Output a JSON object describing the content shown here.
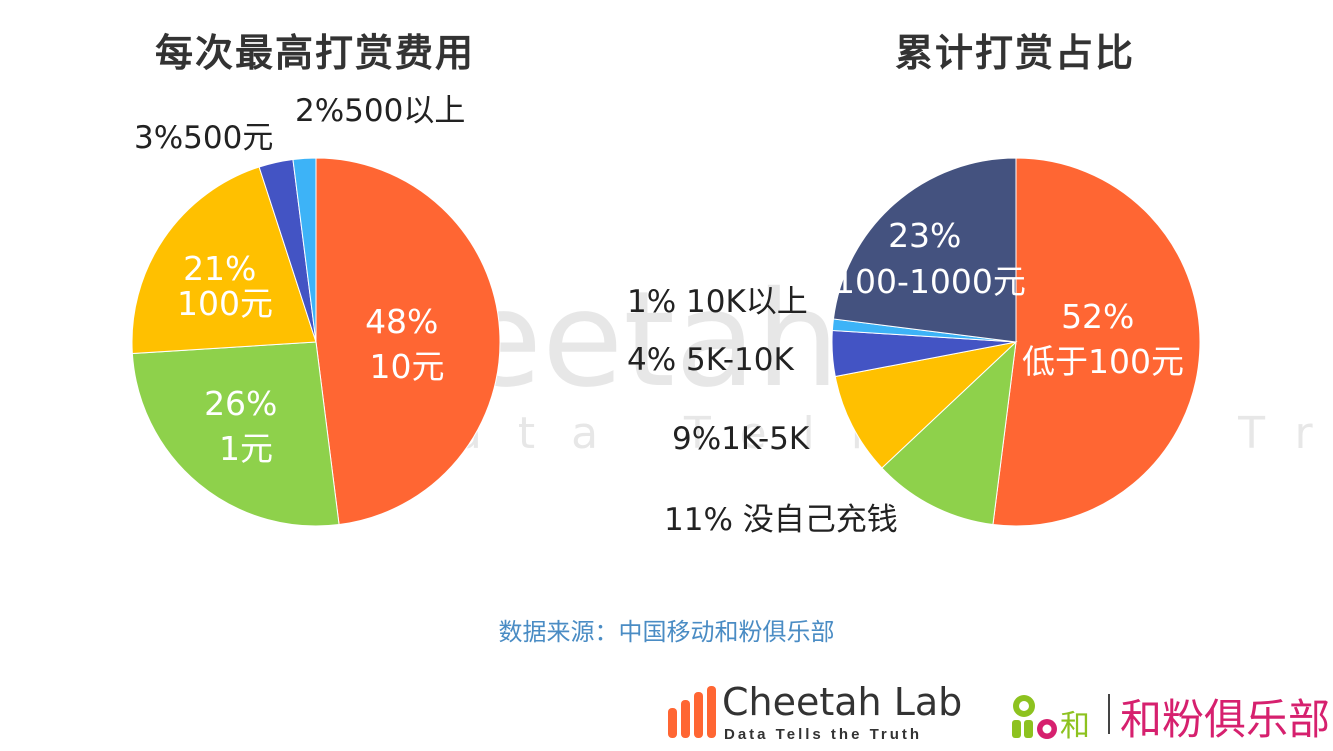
{
  "chart_data": [
    {
      "type": "pie",
      "title": "每次最高打赏费用",
      "slices": [
        {
          "category": "10元",
          "value": 48,
          "label": "48%",
          "color": "#FF6633",
          "label_pos": "inside"
        },
        {
          "category": "1元",
          "value": 26,
          "label": "26%",
          "color": "#8ED14B",
          "label_pos": "inside"
        },
        {
          "category": "100元",
          "value": 21,
          "label": "21%",
          "color": "#FFC000",
          "label_pos": "inside"
        },
        {
          "category": "500元",
          "value": 3,
          "label": "3%",
          "color": "#4354C4",
          "label_pos": "outside"
        },
        {
          "category": "500以上",
          "value": 2,
          "label": "2%",
          "color": "#3DB3F7",
          "label_pos": "outside"
        }
      ]
    },
    {
      "type": "pie",
      "title": "累计打赏占比",
      "slices": [
        {
          "category": "低于100元",
          "value": 52,
          "label": "52%",
          "color": "#FF6633",
          "label_pos": "inside"
        },
        {
          "category": "没自己充钱",
          "value": 11,
          "label": "11%",
          "color": "#8ED14B",
          "label_pos": "outside"
        },
        {
          "category": "1K-5K",
          "value": 9,
          "label": "9%",
          "color": "#FFC000",
          "label_pos": "outside"
        },
        {
          "category": "5K-10K",
          "value": 4,
          "label": "4%",
          "color": "#4354C4",
          "label_pos": "outside"
        },
        {
          "category": "10K以上",
          "value": 1,
          "label": "1%",
          "color": "#3DB3F7",
          "label_pos": "outside"
        },
        {
          "category": "100-1000元",
          "value": 23,
          "label": "23%",
          "color": "#44527F",
          "label_pos": "inside"
        }
      ]
    }
  ],
  "slice_labels": {
    "left": [
      "48%\n10元",
      "26%\n1元",
      "21%\n100元",
      "3%500元",
      "2%500以上"
    ],
    "right": [
      "52%\n低于100元",
      "11% 没自己充钱",
      "9%1K-5K",
      "4% 5K-10K",
      "1% 10K以上",
      "23%\n100-1000元"
    ]
  },
  "watermark": {
    "main": "Cheetah Lab",
    "tagline": "Data Tells the Truth"
  },
  "source": "数据来源：中国移动和粉俱乐部",
  "footer": {
    "cheetah_name": "Cheetah Lab",
    "cheetah_tagline": "Data Tells the Truth",
    "club_logo_text": "and和",
    "club_name": "和粉俱乐部"
  }
}
